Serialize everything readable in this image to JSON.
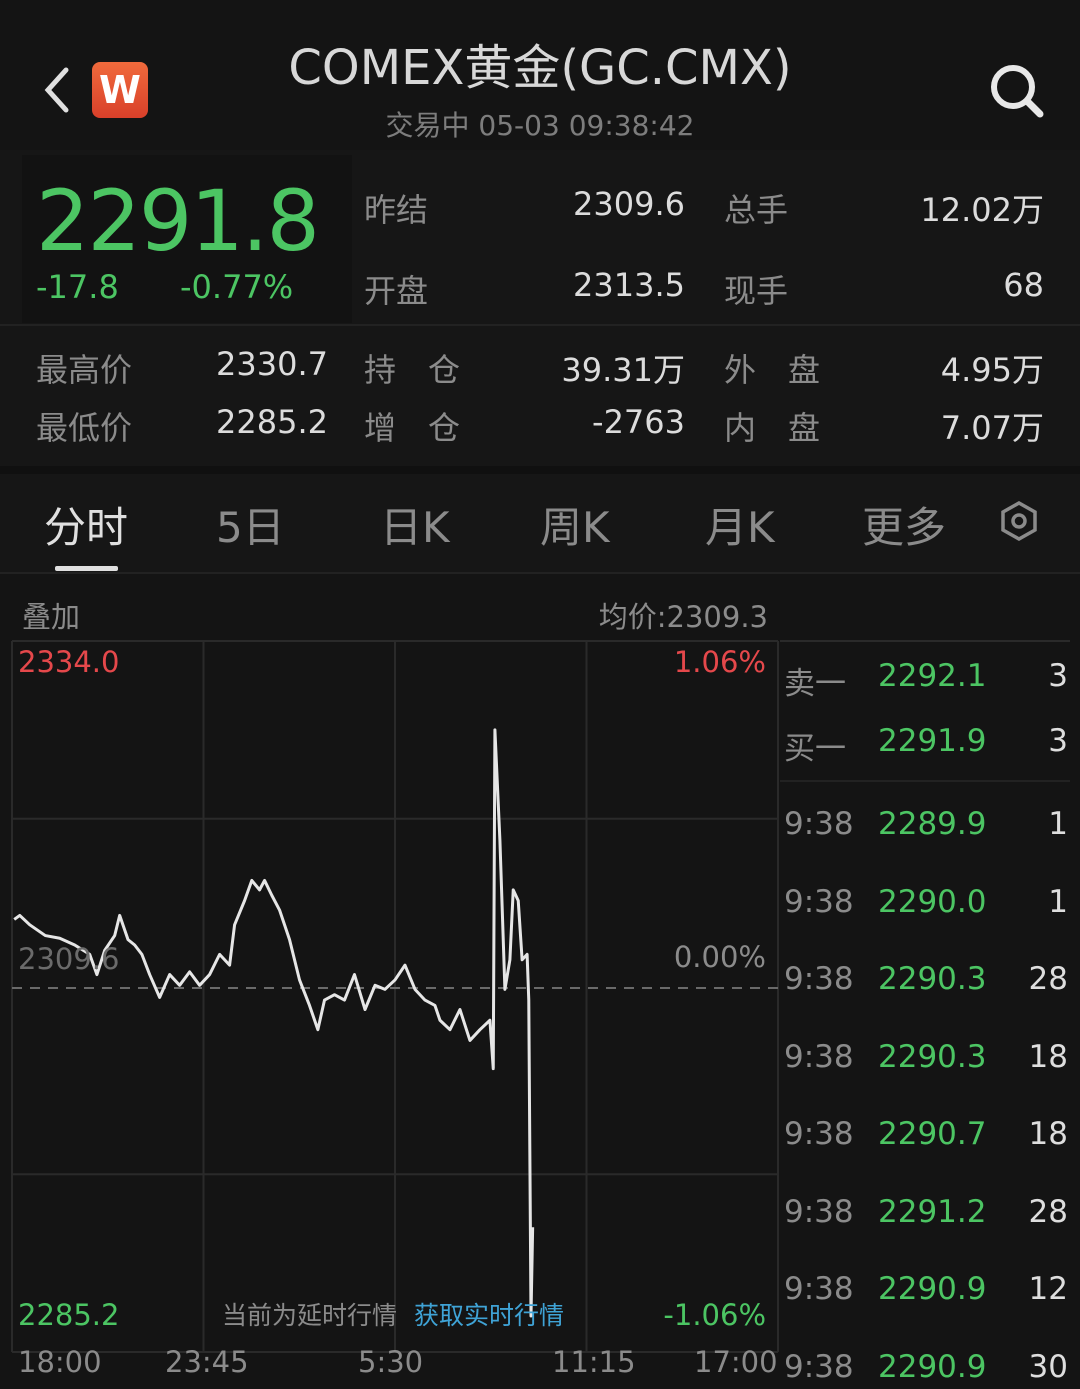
{
  "header": {
    "title": "COMEX黄金(GC.CMX)",
    "status": "交易中 05-03 09:38:42",
    "logo_letter": "W",
    "back_icon": "chevron-left-icon",
    "search_icon": "search-icon"
  },
  "quote": {
    "price": "2291.8",
    "change": "-17.8",
    "change_pct": "-0.77%"
  },
  "stats": [
    {
      "label": "昨结",
      "value": "2309.6"
    },
    {
      "label": "总手",
      "value": "12.02万"
    },
    {
      "label": "开盘",
      "value": "2313.5"
    },
    {
      "label": "现手",
      "value": "68"
    },
    {
      "label": "最高价",
      "value": "2330.7"
    },
    {
      "label": "持　仓",
      "value": "39.31万"
    },
    {
      "label": "外　盘",
      "value": "4.95万"
    },
    {
      "label": "最低价",
      "value": "2285.2"
    },
    {
      "label": "增　仓",
      "value": "-2763"
    },
    {
      "label": "内　盘",
      "value": "7.07万"
    }
  ],
  "tabs": [
    {
      "label": "分时",
      "active": true
    },
    {
      "label": "5日"
    },
    {
      "label": "日K"
    },
    {
      "label": "周K"
    },
    {
      "label": "月K"
    },
    {
      "label": "更多"
    }
  ],
  "chart_toolbar": {
    "overlay": "叠加",
    "avg_price": "均价:2309.3"
  },
  "delay_notice": {
    "text": "当前为延时行情",
    "link": "获取实时行情"
  },
  "colors": {
    "up": "#e5484b",
    "down": "#4cc563",
    "link": "#3fa3d6",
    "logo": "#e8542c"
  },
  "chart_data": {
    "type": "line",
    "ylim": [
      2285.2,
      2334.0
    ],
    "y_labels": {
      "top": "2334.0",
      "mid": "2309.6",
      "bottom": "2285.2"
    },
    "pct_labels": {
      "top": "1.06%",
      "mid": "0.00%",
      "bottom": "-1.06%"
    },
    "x_ticks": [
      "18:00",
      "23:45",
      "5:30",
      "11:15",
      "17:00"
    ],
    "x_range": [
      "18:00",
      "17:00"
    ],
    "reference_line": 2309.6,
    "grid": true,
    "series": [
      {
        "points": [
          [
            "18:04",
            2314.7
          ],
          [
            "18:14",
            2315.0
          ],
          [
            "18:32",
            2314.3
          ],
          [
            "19:00",
            2313.5
          ],
          [
            "19:26",
            2313.3
          ],
          [
            "19:53",
            2312.8
          ],
          [
            "20:20",
            2312.1
          ],
          [
            "20:33",
            2310.6
          ],
          [
            "20:47",
            2312.4
          ],
          [
            "21:05",
            2313.5
          ],
          [
            "21:14",
            2315.0
          ],
          [
            "21:29",
            2313.2
          ],
          [
            "21:41",
            2312.8
          ],
          [
            "21:54",
            2312.1
          ],
          [
            "22:08",
            2310.6
          ],
          [
            "22:26",
            2308.9
          ],
          [
            "22:44",
            2310.6
          ],
          [
            "23:02",
            2309.8
          ],
          [
            "23:20",
            2310.8
          ],
          [
            "23:38",
            2309.8
          ],
          [
            "23:56",
            2310.6
          ],
          [
            "00:14",
            2312.1
          ],
          [
            "00:32",
            2311.3
          ],
          [
            "00:41",
            2314.3
          ],
          [
            "00:59",
            2316.1
          ],
          [
            "01:12",
            2317.6
          ],
          [
            "01:26",
            2316.9
          ],
          [
            "01:35",
            2317.6
          ],
          [
            "01:48",
            2316.5
          ],
          [
            "02:02",
            2315.4
          ],
          [
            "02:20",
            2313.2
          ],
          [
            "02:38",
            2310.2
          ],
          [
            "02:56",
            2308.3
          ],
          [
            "03:11",
            2306.5
          ],
          [
            "03:23",
            2308.7
          ],
          [
            "03:41",
            2309.1
          ],
          [
            "03:59",
            2308.7
          ],
          [
            "04:17",
            2310.6
          ],
          [
            "04:36",
            2308.0
          ],
          [
            "04:54",
            2309.8
          ],
          [
            "05:12",
            2309.5
          ],
          [
            "05:30",
            2310.2
          ],
          [
            "05:48",
            2311.3
          ],
          [
            "06:06",
            2309.5
          ],
          [
            "06:24",
            2308.7
          ],
          [
            "06:42",
            2308.3
          ],
          [
            "06:51",
            2307.2
          ],
          [
            "07:09",
            2306.5
          ],
          [
            "07:27",
            2308.0
          ],
          [
            "07:45",
            2305.7
          ],
          [
            "08:03",
            2306.5
          ],
          [
            "08:21",
            2307.2
          ],
          [
            "08:27",
            2303.6
          ],
          [
            "08:30",
            2328.8
          ],
          [
            "08:39",
            2320.6
          ],
          [
            "08:48",
            2309.5
          ],
          [
            "08:57",
            2311.7
          ],
          [
            "09:03",
            2316.9
          ],
          [
            "09:12",
            2316.1
          ],
          [
            "09:19",
            2311.7
          ],
          [
            "09:28",
            2312.1
          ],
          [
            "09:31",
            2308.7
          ],
          [
            "09:35",
            2285.2
          ],
          [
            "09:38",
            2291.8
          ]
        ]
      }
    ]
  },
  "order_book": {
    "quotes": [
      {
        "label": "卖一",
        "price": "2292.1",
        "qty": "3"
      },
      {
        "label": "买一",
        "price": "2291.9",
        "qty": "3"
      }
    ],
    "trades": [
      {
        "time": "9:38",
        "price": "2289.9",
        "qty": "1"
      },
      {
        "time": "9:38",
        "price": "2290.0",
        "qty": "1"
      },
      {
        "time": "9:38",
        "price": "2290.3",
        "qty": "28"
      },
      {
        "time": "9:38",
        "price": "2290.3",
        "qty": "18"
      },
      {
        "time": "9:38",
        "price": "2290.7",
        "qty": "18"
      },
      {
        "time": "9:38",
        "price": "2291.2",
        "qty": "28"
      },
      {
        "time": "9:38",
        "price": "2290.9",
        "qty": "12"
      },
      {
        "time": "9:38",
        "price": "2290.9",
        "qty": "30"
      }
    ]
  }
}
